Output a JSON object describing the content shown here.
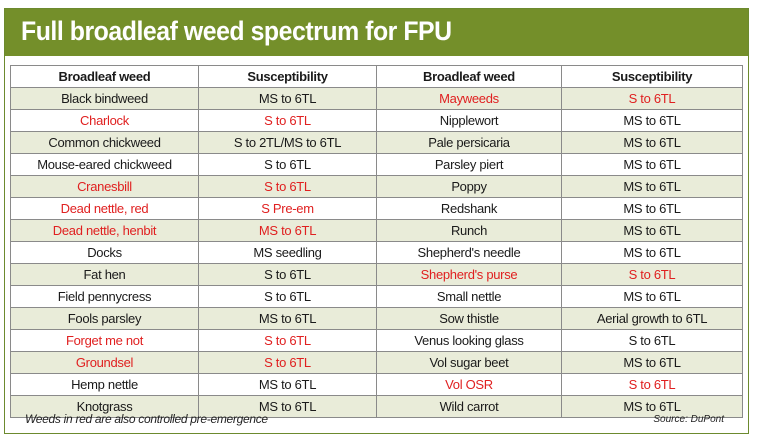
{
  "title": "Full broadleaf weed spectrum for FPU",
  "headers": [
    "Broadleaf weed",
    "Susceptibility",
    "Broadleaf weed",
    "Susceptibility"
  ],
  "rows": [
    {
      "weed_left": "Black bindweed",
      "susc_left": "MS to 6TL",
      "left_red": false,
      "weed_right": "Mayweeds",
      "susc_right": "S to 6TL",
      "right_red": true
    },
    {
      "weed_left": "Charlock",
      "susc_left": "S to 6TL",
      "left_red": true,
      "weed_right": "Nipplewort",
      "susc_right": "MS to 6TL",
      "right_red": false
    },
    {
      "weed_left": "Common chickweed",
      "susc_left": "S to 2TL/MS to 6TL",
      "left_red": false,
      "weed_right": "Pale persicaria",
      "susc_right": "MS to 6TL",
      "right_red": false
    },
    {
      "weed_left": "Mouse-eared chickweed",
      "susc_left": "S to 6TL",
      "left_red": false,
      "weed_right": "Parsley piert",
      "susc_right": "MS to 6TL",
      "right_red": false
    },
    {
      "weed_left": "Cranesbill",
      "susc_left": "S to 6TL",
      "left_red": true,
      "weed_right": "Poppy",
      "susc_right": "MS to 6TL",
      "right_red": false
    },
    {
      "weed_left": "Dead nettle, red",
      "susc_left": "S Pre-em",
      "left_red": true,
      "weed_right": "Redshank",
      "susc_right": "MS to 6TL",
      "right_red": false
    },
    {
      "weed_left": "Dead nettle, henbit",
      "susc_left": "MS to 6TL",
      "left_red": true,
      "weed_right": "Runch",
      "susc_right": "MS to 6TL",
      "right_red": false
    },
    {
      "weed_left": "Docks",
      "susc_left": "MS seedling",
      "left_red": false,
      "weed_right": "Shepherd's needle",
      "susc_right": "MS to 6TL",
      "right_red": false
    },
    {
      "weed_left": "Fat hen",
      "susc_left": "S to 6TL",
      "left_red": false,
      "weed_right": "Shepherd's purse",
      "susc_right": "S to 6TL",
      "right_red": true
    },
    {
      "weed_left": "Field pennycress",
      "susc_left": "S to 6TL",
      "left_red": false,
      "weed_right": "Small nettle",
      "susc_right": "MS to 6TL",
      "right_red": false
    },
    {
      "weed_left": "Fools parsley",
      "susc_left": "MS to 6TL",
      "left_red": false,
      "weed_right": "Sow thistle",
      "susc_right": "Aerial growth to 6TL",
      "right_red": false
    },
    {
      "weed_left": "Forget me not",
      "susc_left": "S to 6TL",
      "left_red": true,
      "weed_right": "Venus looking glass",
      "susc_right": "S to 6TL",
      "right_red": false
    },
    {
      "weed_left": "Groundsel",
      "susc_left": "S to 6TL",
      "left_red": true,
      "weed_right": "Vol sugar beet",
      "susc_right": "MS to 6TL",
      "right_red": false
    },
    {
      "weed_left": "Hemp nettle",
      "susc_left": "MS to 6TL",
      "left_red": false,
      "weed_right": "Vol OSR",
      "susc_right": "S to 6TL",
      "right_red": true
    },
    {
      "weed_left": "Knotgrass",
      "susc_left": "MS to 6TL",
      "left_red": false,
      "weed_right": "Wild carrot",
      "susc_right": "MS to 6TL",
      "right_red": false
    }
  ],
  "footnote": "Weeds in red are also controlled pre-emergence",
  "source": "Source: DuPont",
  "colors": {
    "title_bar": "#748f2a",
    "row_shade": "#e9ecd9",
    "red_text": "#e02020"
  }
}
